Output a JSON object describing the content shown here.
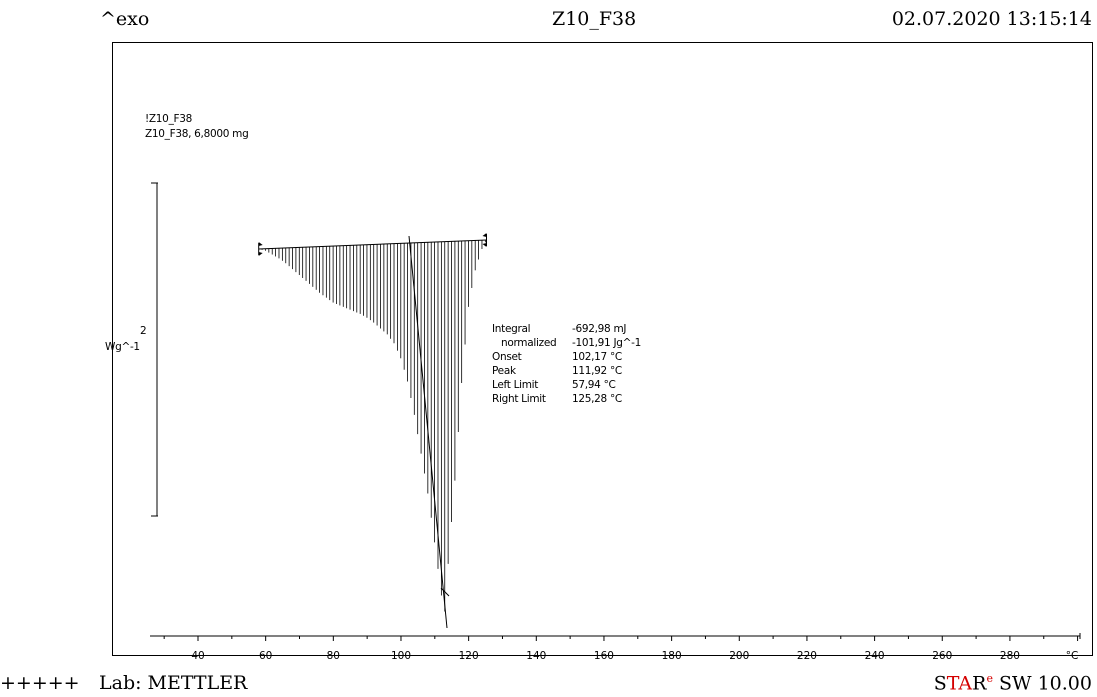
{
  "header": {
    "exo_label": "^exo",
    "title": "Z10_F38",
    "datetime": "02.07.2020 13:15:14"
  },
  "sample": {
    "name_line": "!Z10_F38",
    "mass_line": "Z10_F38, 6,8000 mg"
  },
  "scale_bar": {
    "value": "2",
    "unit": "Wg^-1"
  },
  "results": [
    {
      "label": "Integral",
      "value": "-692,98 mJ"
    },
    {
      "label": "  normalized",
      "value": "-101,91 Jg^-1"
    },
    {
      "label": "Onset",
      "value": "102,17 °C"
    },
    {
      "label": "Peak",
      "value": "111,92 °C"
    },
    {
      "label": "Left Limit",
      "value": "57,94 °C"
    },
    {
      "label": "Right Limit",
      "value": "125,28 °C"
    }
  ],
  "footer": {
    "marks": "+++++",
    "lab": "Lab: METTLER",
    "star_s": "S",
    "star_ta": "TA",
    "star_r": "R",
    "star_e": "e",
    "version": " SW 10.00"
  },
  "chart_data": {
    "type": "line",
    "xlabel": "°C",
    "x_ticks": [
      40,
      60,
      80,
      100,
      120,
      140,
      160,
      180,
      200,
      220,
      240,
      260,
      280
    ],
    "xlim": [
      23,
      305
    ],
    "scale_bar_value": 2,
    "scale_bar_unit": "Wg^-1",
    "grid": false,
    "integration": {
      "left_limit": 57.94,
      "right_limit": 125.28,
      "onset": 102.17,
      "peak": 111.92
    },
    "series": [
      {
        "x": [
          58,
          60,
          62,
          64,
          66,
          68,
          70,
          72,
          74,
          76,
          78,
          80,
          82,
          84,
          86,
          88,
          90,
          92,
          94,
          96,
          98,
          100,
          102,
          104,
          106,
          108,
          110,
          112,
          113,
          114,
          116,
          118,
          120,
          122,
          124,
          125.3
        ],
        "y": [
          0.0,
          -0.02,
          -0.06,
          -0.1,
          -0.15,
          -0.21,
          -0.27,
          -0.33,
          -0.39,
          -0.45,
          -0.5,
          -0.55,
          -0.58,
          -0.61,
          -0.64,
          -0.67,
          -0.71,
          -0.76,
          -0.82,
          -0.88,
          -0.97,
          -1.12,
          -1.35,
          -1.68,
          -2.06,
          -2.45,
          -2.93,
          -3.45,
          -3.6,
          -3.1,
          -2.3,
          -1.35,
          -0.62,
          -0.28,
          -0.08,
          0.0
        ]
      }
    ]
  }
}
